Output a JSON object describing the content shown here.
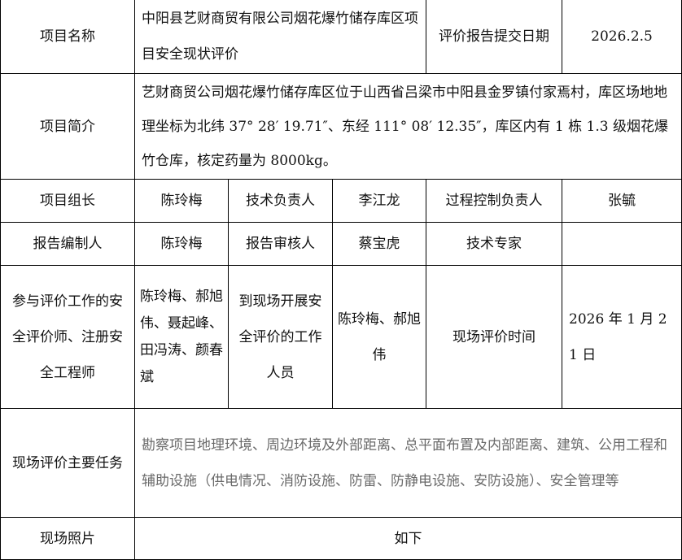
{
  "row1": {
    "label": "项目名称",
    "name": "中阳县艺财商贸有限公司烟花爆竹储存库区项目安全现状评价",
    "date_label": "评价报告提交日期",
    "date": "2026.2.5"
  },
  "row2": {
    "label": "项目简介",
    "text": "艺财商贸公司烟花爆竹储存库区位于山西省吕梁市中阳县金罗镇付家焉村，库区场地地理坐标为北纬 37° 28′ 19.71″、东经 111° 08′ 12.35″，库区内有 1 栋 1.3 级烟花爆竹仓库，核定药量为 8000kg。"
  },
  "row3": {
    "leader_label": "项目组长",
    "leader": "陈玲梅",
    "tech_label": "技术负责人",
    "tech": "李江龙",
    "process_label": "过程控制负责人",
    "process": "张毓"
  },
  "row4": {
    "author_label": "报告编制人",
    "author": "陈玲梅",
    "reviewer_label": "报告审核人",
    "reviewer": "蔡宝虎",
    "expert_label": "技术专家",
    "expert": ""
  },
  "row5": {
    "label": "参与评价工作的安全评价师、注册安全工程师",
    "names": "陈玲梅、郝旭伟、聂起峰、田冯涛、颜春斌",
    "onsite_label": "到现场开展安全评价的工作人员",
    "onsite": "陈玲梅、郝旭伟",
    "time_label": "现场评价时间",
    "time": "2026 年 1 月 21 日"
  },
  "row6": {
    "label": "现场评价主要任务",
    "text": "勘察项目地理环境、周边环境及外部距离、总平面布置及内部距离、建筑、公用工程和辅助设施（供电情况、消防设施、防雷、防静电设施、安防设施）、安全管理等"
  },
  "row7": {
    "label": "现场照片",
    "value": "如下"
  }
}
